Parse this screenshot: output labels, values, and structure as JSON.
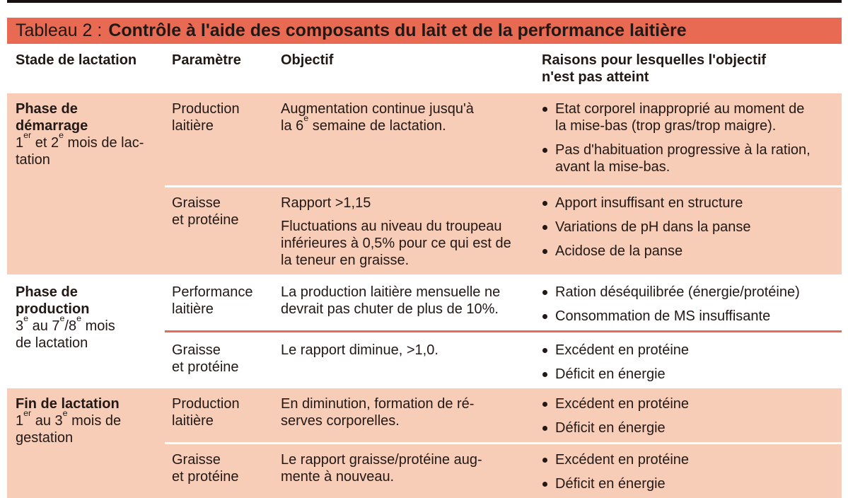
{
  "title": {
    "prefix": "Tableau 2 :",
    "main": "Contrôle à l'aide des composants du lait et de la performance laitière"
  },
  "header": {
    "col1": "Stade de lactation",
    "col2": "Paramètre",
    "col3": "Objectif",
    "col4": "Raisons pour lesquelles l'objectif\nn'est pas atteint"
  },
  "groups": [
    {
      "stage_name": "Phase de\ndémarrage",
      "stage_detail": "1^{er} et 2^{e} mois de lac-\ntation",
      "rows": [
        {
          "parameter": "Production\nlaitière",
          "objectives": [
            "Augmentation continue jusqu'à\nla 6^{e} semaine de lactation."
          ],
          "reasons": [
            "Etat corporel inapproprié au moment de\nla mise-bas (trop gras/trop maigre).",
            "Pas d'habituation progressive à la ration,\navant la mise-bas."
          ]
        },
        {
          "parameter": "Graisse\net protéine",
          "objectives": [
            "Rapport >1,15",
            "Fluctuations au niveau du troupeau\ninférieures à 0,5% pour ce qui est de\nla teneur en graisse."
          ],
          "reasons": [
            "Apport insuffisant en structure",
            "Variations de pH dans la panse",
            "Acidose de la panse"
          ]
        }
      ]
    },
    {
      "stage_name": "Phase de\nproduction",
      "stage_detail": "3^{e} au 7^{e}/8^{e} mois\nde lactation",
      "rows": [
        {
          "parameter": "Performance\nlaitière",
          "objectives": [
            "La production laitière mensuelle ne\ndevrait pas chuter de plus de 10%."
          ],
          "reasons": [
            "Ration déséquilibrée (énergie/protéine)",
            "Consommation de MS insuffisante"
          ]
        },
        {
          "parameter": "Graisse\net protéine",
          "objectives": [
            "Le rapport diminue, >1,0."
          ],
          "reasons": [
            "Excédent en protéine",
            "Déficit en énergie"
          ]
        }
      ]
    },
    {
      "stage_name": "Fin de lactation",
      "stage_detail": "1^{er} au 3^{e} mois de\ngestation",
      "rows": [
        {
          "parameter": "Production\nlaitière",
          "objectives": [
            "En diminution, formation de ré-\nserves corporelles."
          ],
          "reasons": [
            "Excédent en protéine",
            "Déficit en énergie"
          ]
        },
        {
          "parameter": "Graisse\net protéine",
          "objectives": [
            "Le rapport graisse/protéine aug-\nmente à nouveau."
          ],
          "reasons": [
            "Excédent en protéine",
            "Déficit en énergie"
          ]
        }
      ]
    }
  ],
  "colors": {
    "accent": "#e96a52",
    "shade": "#f8cdb8",
    "rule": "#171010",
    "text": "#221815"
  }
}
